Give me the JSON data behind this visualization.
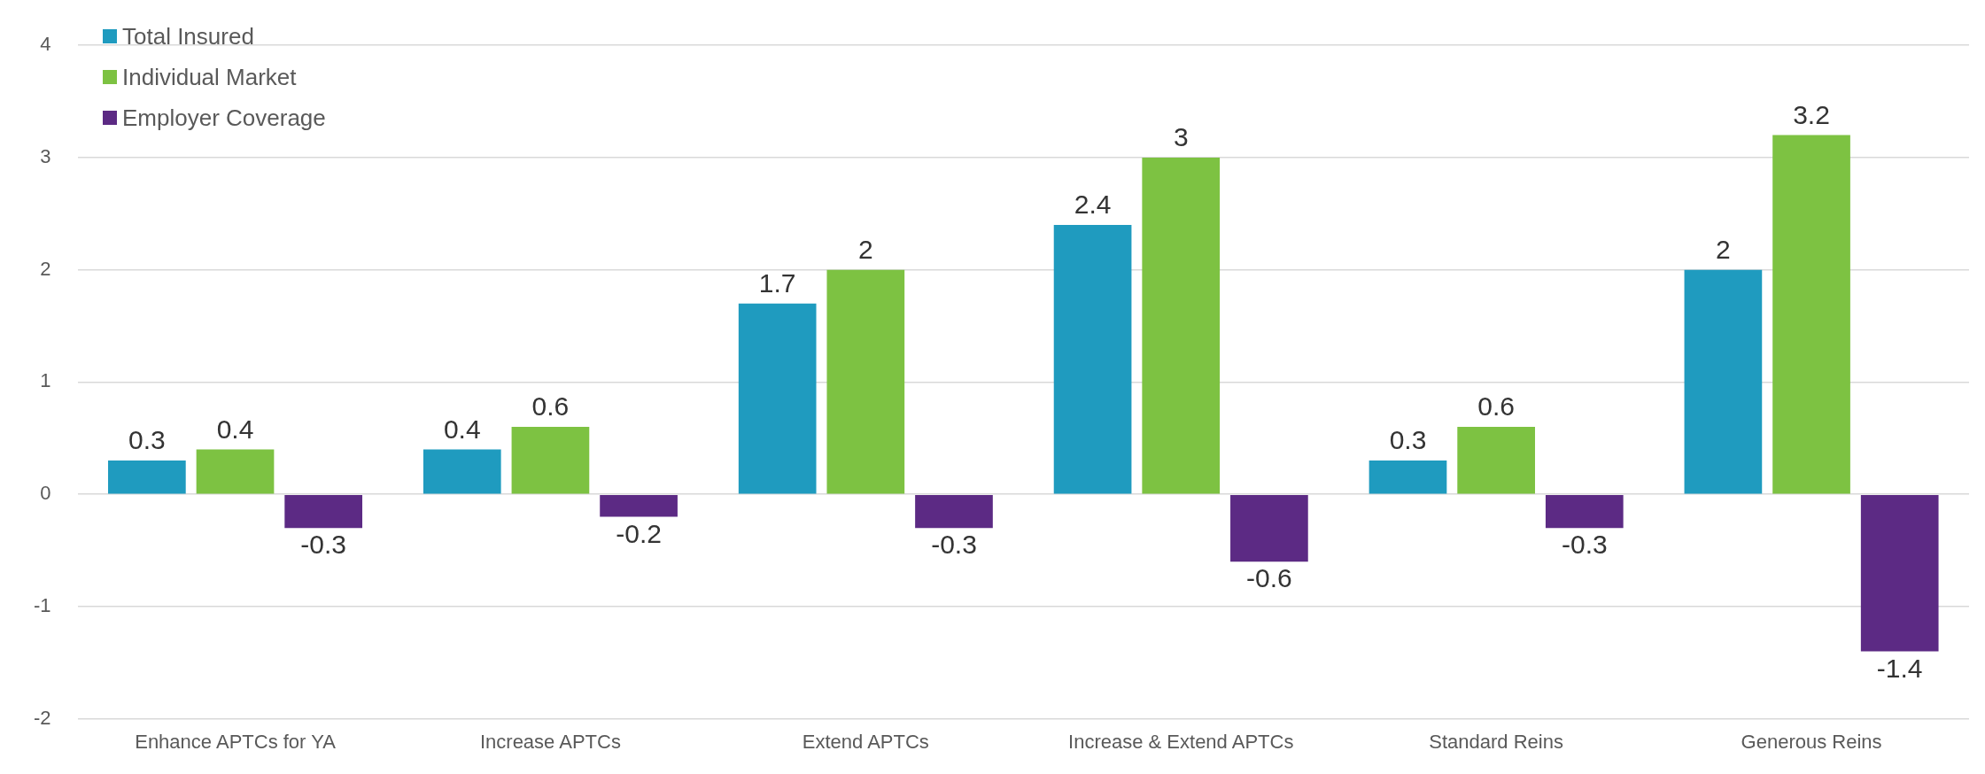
{
  "chart_data": {
    "type": "bar",
    "categories": [
      "Enhance APTCs for YA",
      "Increase APTCs",
      "Extend APTCs",
      "Increase & Extend APTCs",
      "Standard Reins",
      "Generous Reins"
    ],
    "series": [
      {
        "name": "Total Insured",
        "color": "#1f9bbf",
        "values": [
          0.3,
          0.4,
          1.7,
          2.4,
          0.3,
          2
        ]
      },
      {
        "name": "Individual Market",
        "color": "#7dc242",
        "values": [
          0.4,
          0.6,
          2,
          3,
          0.6,
          3.2
        ]
      },
      {
        "name": "Employer Coverage",
        "color": "#5c2a84",
        "values": [
          -0.3,
          -0.2,
          -0.3,
          -0.6,
          -0.3,
          -1.4
        ]
      }
    ],
    "ylim": [
      -2,
      4
    ],
    "yticks": [
      -2,
      -1,
      0,
      1,
      2,
      3,
      4
    ],
    "grid": "y",
    "legend": "top left",
    "data_labels": true
  }
}
